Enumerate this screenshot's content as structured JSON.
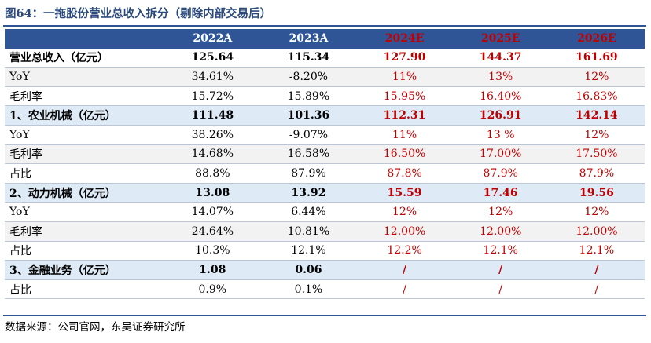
{
  "title": "图64：一拖股份营业总收入拆分（剔除内部交易后）",
  "source": "数据来源：公司官网，东吴证券研究所",
  "header": [
    "",
    "2022A",
    "2023A",
    "2024E",
    "2025E",
    "2026E"
  ],
  "rows": [
    {
      "label": "营业总收入（亿元）",
      "values": [
        "125.64",
        "115.34",
        "127.90",
        "144.37",
        "161.69"
      ],
      "style": "total"
    },
    {
      "label": "YoY",
      "values": [
        "34.61%",
        "-8.20%",
        "11%",
        "13%",
        "12%"
      ],
      "style": "alt"
    },
    {
      "label": "毛利率",
      "values": [
        "15.72%",
        "15.89%",
        "15.95%",
        "16.40%",
        "16.83%"
      ],
      "style": "plain"
    },
    {
      "label": "1、农业机械（亿元）",
      "values": [
        "111.48",
        "101.36",
        "112.31",
        "126.91",
        "142.14"
      ],
      "style": "section"
    },
    {
      "label": "YoY",
      "values": [
        "38.26%",
        "-9.07%",
        "11%",
        "13 %",
        "12%"
      ],
      "style": "plain"
    },
    {
      "label": "毛利率",
      "values": [
        "14.68%",
        "16.58%",
        "16.50%",
        "17.00%",
        "17.50%"
      ],
      "style": "alt"
    },
    {
      "label": "占比",
      "values": [
        "88.8%",
        "87.9%",
        "87.8%",
        "87.9%",
        "87.9%"
      ],
      "style": "plain"
    },
    {
      "label": "2、动力机械（亿元）",
      "values": [
        "13.08",
        "13.92",
        "15.59",
        "17.46",
        "19.56"
      ],
      "style": "section"
    },
    {
      "label": "YoY",
      "values": [
        "14.07%",
        "6.44%",
        "12%",
        "12%",
        "12%"
      ],
      "style": "plain"
    },
    {
      "label": "毛利率",
      "values": [
        "24.64%",
        "10.81%",
        "12.00%",
        "12.00%",
        "12.00%"
      ],
      "style": "alt"
    },
    {
      "label": "占比",
      "values": [
        "10.3%",
        "12.1%",
        "12.2%",
        "12.1%",
        "12.1%"
      ],
      "style": "plain"
    },
    {
      "label": "3、金融业务（亿元）",
      "values": [
        "1.08",
        "0.06",
        "/",
        "/",
        "/"
      ],
      "style": "section"
    },
    {
      "label": "占比",
      "values": [
        "0.9%",
        "0.1%",
        "/",
        "/",
        "/"
      ],
      "style": "plain"
    }
  ],
  "colors": {
    "header_bg": "#2f5597",
    "estimate_text": "#c00000",
    "section_bg": "#deebf7",
    "alt_bg": "#f2f2f2"
  }
}
